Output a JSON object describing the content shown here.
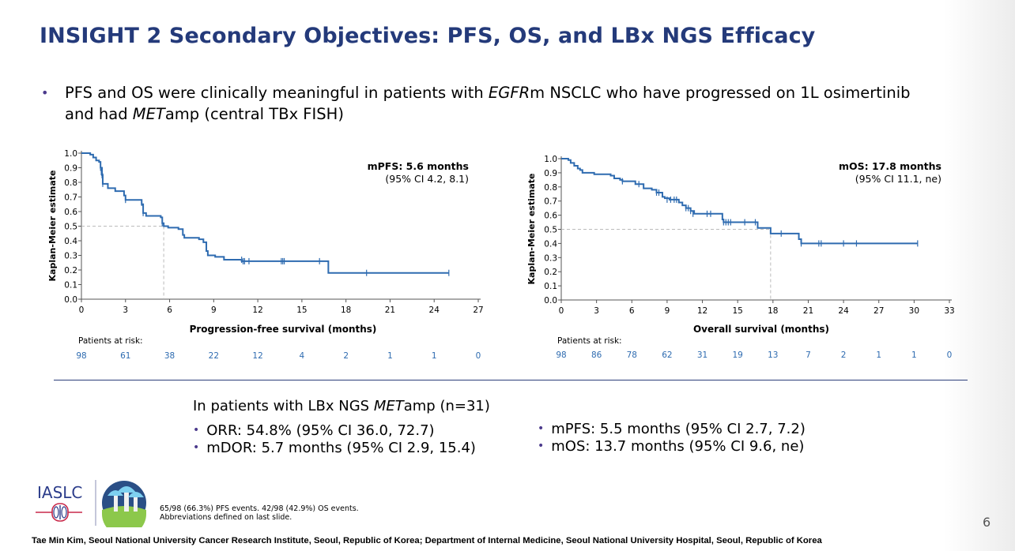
{
  "slide": {
    "title": "INSIGHT 2 Secondary Objectives: PFS, OS, and LBx NGS Efficacy",
    "bullet": {
      "parts": [
        "PFS and OS were clinically meaningful in patients with ",
        "EGFR",
        "m NSCLC who have progressed on 1L osimertinib and had ",
        "MET",
        "amp (central TBx FISH)"
      ]
    },
    "subsection": {
      "heading_parts": [
        "In patients with LBx NGS ",
        "MET",
        "amp (n=31)"
      ],
      "left_items": [
        "ORR: 54.8% (95% CI 36.0, 72.7)",
        "mDOR: 5.7 months (95% CI 2.9, 15.4)"
      ],
      "right_items": [
        "mPFS: 5.5 months (95% CI 2.7, 7.2)",
        "mOS: 13.7 months (95% CI 9.6, ne)"
      ]
    },
    "footnote_lines": [
      "65/98 (66.3%) PFS events. 42/98 (42.9%) OS events.",
      "Abbreviations defined on last slide."
    ],
    "author_line": "Tae Min Kim, Seoul National University Cancer Research Institute, Seoul, Republic of Korea; Department of Internal Medicine, Seoul National University Hospital, Seoul, Republic of Korea",
    "page_number": "6",
    "logo": {
      "text": "IASLC",
      "icon": "iaslc-lung-logo",
      "badge_icon": "conference-supertree-badge"
    },
    "colors": {
      "title": "#243a7a",
      "curve": "#2e6bb0",
      "risk_numbers": "#2e6bb0",
      "median_line": "#bbbbbb",
      "bullet": "#4b3a8c"
    }
  },
  "chart_data": [
    {
      "type": "line",
      "subtype": "kaplan-meier",
      "title": "",
      "annotation_title": "mPFS: 5.6 months",
      "annotation_ci": "(95% CI 4.2, 8.1)",
      "xlabel": "Progression-free survival (months)",
      "ylabel": "Kaplan-Meier estimate",
      "xlim": [
        0,
        27
      ],
      "ylim": [
        0,
        1.0
      ],
      "xticks": [
        0,
        3,
        6,
        9,
        12,
        15,
        18,
        21,
        24,
        27
      ],
      "yticks": [
        "0.0",
        "0.1",
        "0.2",
        "0.3",
        "0.4",
        "0.5",
        "0.6",
        "0.7",
        "0.8",
        "0.9",
        "1.0"
      ],
      "median": 5.6,
      "steps": [
        [
          0,
          1.0
        ],
        [
          0.6,
          0.99
        ],
        [
          0.8,
          0.97
        ],
        [
          1.0,
          0.95
        ],
        [
          1.2,
          0.94
        ],
        [
          1.3,
          0.9
        ],
        [
          1.4,
          0.85
        ],
        [
          1.45,
          0.79
        ],
        [
          1.8,
          0.76
        ],
        [
          2.3,
          0.74
        ],
        [
          2.9,
          0.71
        ],
        [
          3.0,
          0.68
        ],
        [
          4.0,
          0.68
        ],
        [
          4.1,
          0.65
        ],
        [
          4.2,
          0.59
        ],
        [
          4.4,
          0.57
        ],
        [
          5.4,
          0.56
        ],
        [
          5.5,
          0.52
        ],
        [
          5.6,
          0.5
        ],
        [
          5.9,
          0.49
        ],
        [
          6.6,
          0.48
        ],
        [
          6.9,
          0.44
        ],
        [
          7.0,
          0.42
        ],
        [
          8.0,
          0.41
        ],
        [
          8.3,
          0.39
        ],
        [
          8.5,
          0.33
        ],
        [
          8.6,
          0.3
        ],
        [
          9.1,
          0.29
        ],
        [
          9.7,
          0.27
        ],
        [
          10.9,
          0.26
        ],
        [
          16.8,
          0.26
        ],
        [
          16.8,
          0.18
        ],
        [
          25.0,
          0.18
        ]
      ],
      "censored": [
        [
          1.3,
          0.9
        ],
        [
          1.35,
          0.87
        ],
        [
          1.4,
          0.85
        ],
        [
          1.45,
          0.84
        ],
        [
          1.45,
          0.79
        ],
        [
          3.0,
          0.68
        ],
        [
          4.1,
          0.66
        ],
        [
          4.2,
          0.59
        ],
        [
          5.5,
          0.52
        ],
        [
          10.9,
          0.27
        ],
        [
          11.0,
          0.26
        ],
        [
          11.1,
          0.26
        ],
        [
          11.4,
          0.26
        ],
        [
          13.6,
          0.26
        ],
        [
          13.7,
          0.26
        ],
        [
          13.8,
          0.26
        ],
        [
          16.2,
          0.26
        ],
        [
          19.4,
          0.18
        ],
        [
          25.0,
          0.18
        ]
      ],
      "risk_table": {
        "label": "Patients at risk:",
        "times": [
          0,
          3,
          6,
          9,
          12,
          15,
          18,
          21,
          24,
          27
        ],
        "counts": [
          98,
          61,
          38,
          22,
          12,
          4,
          2,
          1,
          1,
          0
        ]
      }
    },
    {
      "type": "line",
      "subtype": "kaplan-meier",
      "title": "",
      "annotation_title": "mOS: 17.8 months",
      "annotation_ci": "(95% CI 11.1, ne)",
      "xlabel": "Overall survival (months)",
      "ylabel": "Kaplan-Meier estimate",
      "xlim": [
        0,
        33
      ],
      "ylim": [
        0,
        1.0
      ],
      "xticks": [
        0,
        3,
        6,
        9,
        12,
        15,
        18,
        21,
        24,
        27,
        30,
        33
      ],
      "yticks": [
        "0.0",
        "0.1",
        "0.2",
        "0.3",
        "0.4",
        "0.5",
        "0.6",
        "0.7",
        "0.8",
        "0.9",
        "1.0"
      ],
      "median": 17.8,
      "steps": [
        [
          0,
          1.0
        ],
        [
          0.6,
          0.99
        ],
        [
          0.8,
          0.97
        ],
        [
          1.1,
          0.95
        ],
        [
          1.4,
          0.93
        ],
        [
          1.6,
          0.92
        ],
        [
          1.8,
          0.9
        ],
        [
          2.8,
          0.89
        ],
        [
          4.2,
          0.88
        ],
        [
          4.5,
          0.86
        ],
        [
          5.0,
          0.85
        ],
        [
          5.2,
          0.84
        ],
        [
          6.3,
          0.82
        ],
        [
          7.0,
          0.79
        ],
        [
          7.7,
          0.78
        ],
        [
          8.1,
          0.76
        ],
        [
          8.6,
          0.73
        ],
        [
          8.8,
          0.72
        ],
        [
          9.2,
          0.71
        ],
        [
          10.0,
          0.69
        ],
        [
          10.3,
          0.67
        ],
        [
          10.6,
          0.65
        ],
        [
          11.0,
          0.63
        ],
        [
          11.3,
          0.61
        ],
        [
          13.6,
          0.61
        ],
        [
          13.7,
          0.57
        ],
        [
          13.8,
          0.55
        ],
        [
          16.6,
          0.55
        ],
        [
          16.7,
          0.51
        ],
        [
          17.8,
          0.51
        ],
        [
          17.8,
          0.47
        ],
        [
          19.9,
          0.47
        ],
        [
          20.2,
          0.43
        ],
        [
          20.4,
          0.4
        ],
        [
          30.3,
          0.4
        ]
      ],
      "censored": [
        [
          5.2,
          0.84
        ],
        [
          6.6,
          0.82
        ],
        [
          8.1,
          0.76
        ],
        [
          8.3,
          0.76
        ],
        [
          9.0,
          0.71
        ],
        [
          9.3,
          0.71
        ],
        [
          9.6,
          0.71
        ],
        [
          9.8,
          0.71
        ],
        [
          10.6,
          0.65
        ],
        [
          10.8,
          0.65
        ],
        [
          11.0,
          0.63
        ],
        [
          11.2,
          0.61
        ],
        [
          12.4,
          0.61
        ],
        [
          12.7,
          0.61
        ],
        [
          13.8,
          0.55
        ],
        [
          14.0,
          0.55
        ],
        [
          14.2,
          0.55
        ],
        [
          14.4,
          0.55
        ],
        [
          15.6,
          0.55
        ],
        [
          16.5,
          0.55
        ],
        [
          18.7,
          0.47
        ],
        [
          20.4,
          0.4
        ],
        [
          21.9,
          0.4
        ],
        [
          22.1,
          0.4
        ],
        [
          24.0,
          0.4
        ],
        [
          25.1,
          0.4
        ],
        [
          30.3,
          0.4
        ]
      ],
      "risk_table": {
        "label": "Patients at risk:",
        "times": [
          0,
          3,
          6,
          9,
          12,
          15,
          18,
          21,
          24,
          27,
          30,
          33
        ],
        "counts": [
          98,
          86,
          78,
          62,
          31,
          19,
          13,
          7,
          2,
          1,
          1,
          0
        ]
      }
    }
  ]
}
